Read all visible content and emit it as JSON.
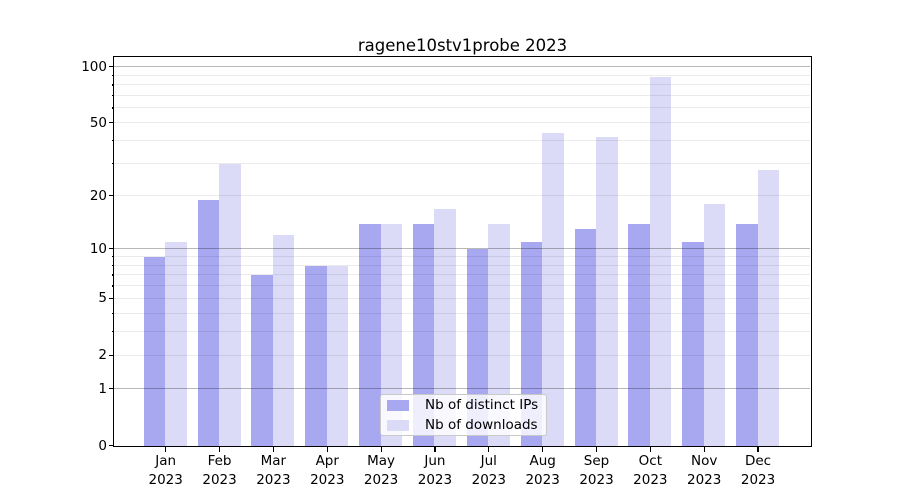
{
  "title": "ragene10stv1probe 2023",
  "chart_data": {
    "type": "bar",
    "title": "ragene10stv1probe 2023",
    "categories": [
      "Jan",
      "Feb",
      "Mar",
      "Apr",
      "May",
      "Jun",
      "Jul",
      "Aug",
      "Sep",
      "Oct",
      "Nov",
      "Dec"
    ],
    "category_year": "2023",
    "series": [
      {
        "name": "Nb of distinct IPs",
        "color": "#a8a8f0",
        "values": [
          9,
          19,
          7,
          8,
          14,
          14,
          10,
          11,
          13,
          14,
          11,
          14
        ]
      },
      {
        "name": "Nb of downloads",
        "color": "#dbdbf8",
        "values": [
          11,
          30,
          12,
          8,
          14,
          17,
          14,
          44,
          42,
          88,
          18,
          28
        ]
      }
    ],
    "xlabel": "",
    "ylabel": "",
    "yscale": "log1p",
    "ylim": [
      0,
      112
    ],
    "yticks": [
      0,
      1,
      2,
      5,
      10,
      20,
      50,
      100
    ],
    "major_gridlines": [
      1,
      10,
      100
    ],
    "minor_gridlines": [
      2,
      3,
      4,
      5,
      6,
      7,
      8,
      9,
      20,
      30,
      40,
      50,
      60,
      70,
      80,
      90
    ],
    "minor_ticks": [
      3,
      4,
      6,
      7,
      8,
      9,
      30,
      40,
      60,
      70,
      80,
      90
    ],
    "grid": true,
    "legend_position": "lower center"
  }
}
